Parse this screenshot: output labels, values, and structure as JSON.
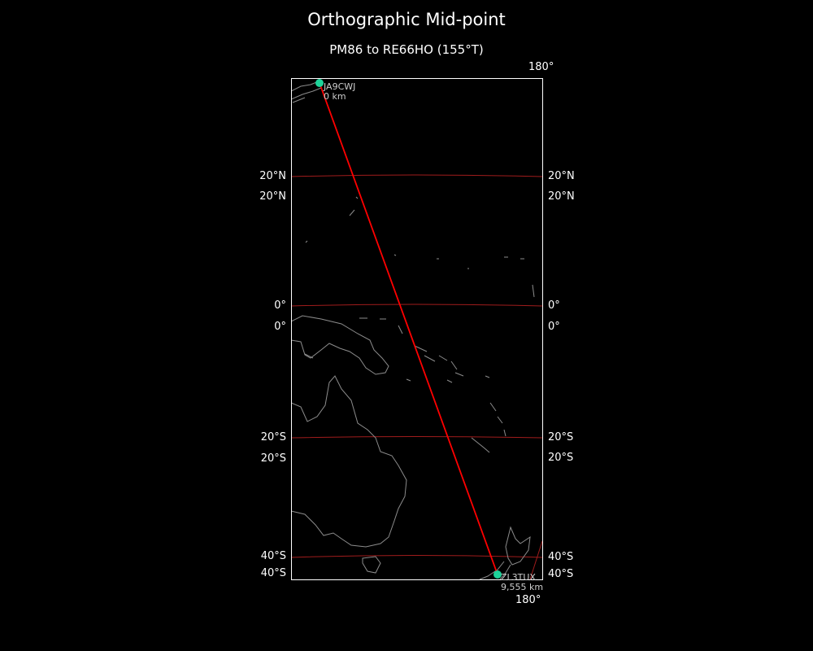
{
  "title": "Orthographic Mid-point",
  "subtitle": "PM86 to RE66HO (155°T)",
  "meridian_labels": {
    "top": "180°",
    "bottom": "180°"
  },
  "parallel_labels": {
    "n20": "20°N",
    "eq": "0°",
    "s20": "20°S",
    "s40": "40°S"
  },
  "stations": [
    {
      "call": "JA9CWJ",
      "distance": "0 km"
    },
    {
      "call": "ZL3TUX",
      "distance": "9,555 km"
    }
  ],
  "colors": {
    "background": "#000000",
    "path": "#ff0000",
    "graticule": "#a01c1c",
    "coastline": "#8c8c8c",
    "station_marker": "#1ed39a",
    "frame": "#ffffff"
  }
}
